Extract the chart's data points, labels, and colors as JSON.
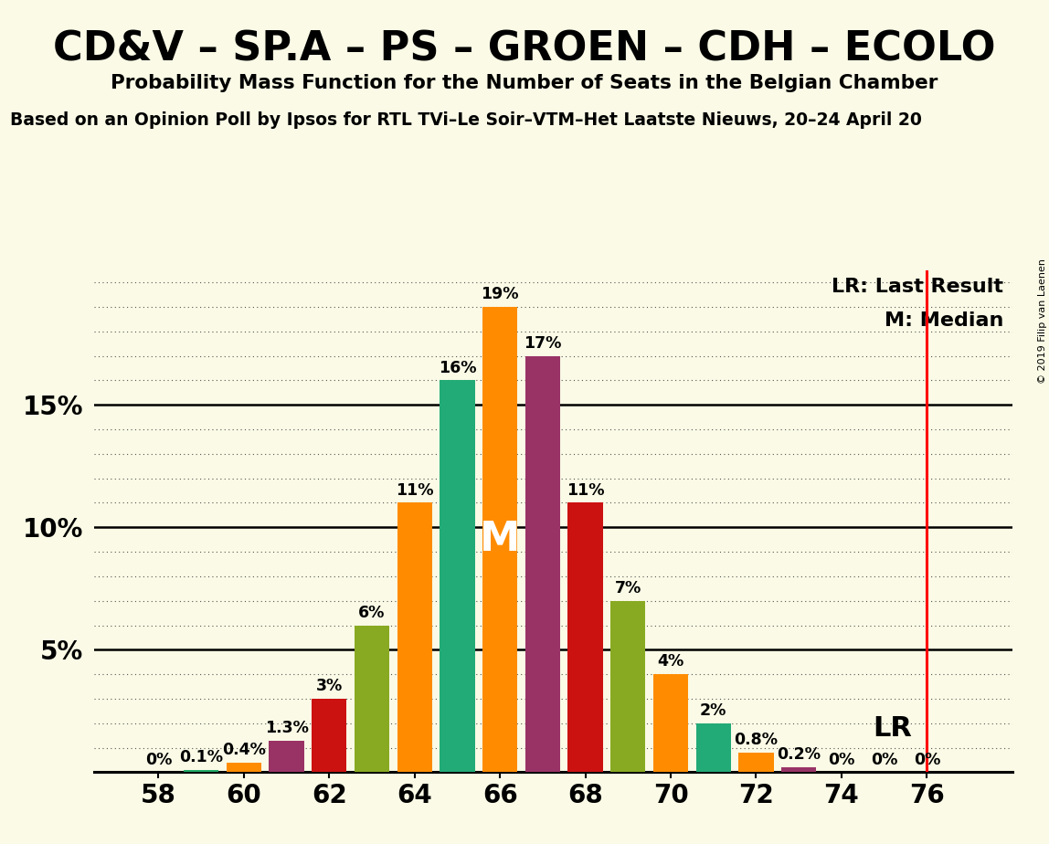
{
  "title": "CD&V – SP.A – PS – GROEN – CDH – ECOLO",
  "subtitle": "Probability Mass Function for the Number of Seats in the Belgian Chamber",
  "source_line": "Based on an Opinion Poll by Ipsos for RTL TVi–Le Soir–VTM–Het Laatste Nieuws, 20–24 April 20",
  "copyright": "© 2019 Filip van Laenen",
  "background_color": "#FAFAE6",
  "seats": [
    58,
    59,
    60,
    61,
    62,
    63,
    64,
    65,
    66,
    67,
    68,
    69,
    70,
    71,
    72,
    73,
    74,
    75,
    76
  ],
  "probabilities": [
    0.0,
    0.1,
    0.4,
    1.3,
    3.0,
    6.0,
    11.0,
    16.0,
    19.0,
    17.0,
    11.0,
    7.0,
    4.0,
    2.0,
    0.8,
    0.2,
    0.0,
    0.0,
    0.0
  ],
  "bar_colors": [
    "#22aa66",
    "#22aa66",
    "#ff8c00",
    "#993366",
    "#cc1111",
    "#88aa22",
    "#ff8c00",
    "#22aa77",
    "#ff8c00",
    "#993366",
    "#cc1111",
    "#88aa22",
    "#ff8c00",
    "#22aa77",
    "#ff8c00",
    "#993366",
    "#88aa22",
    "#88aa22",
    "#88aa22"
  ],
  "label_texts": [
    "0%",
    "0.1%",
    "0.4%",
    "1.3%",
    "3%",
    "6%",
    "11%",
    "16%",
    "19%",
    "17%",
    "11%",
    "7%",
    "4%",
    "2%",
    "0.8%",
    "0.2%",
    "0%",
    "0%",
    "0%"
  ],
  "median_seat": 66,
  "lr_seat": 76,
  "ytick_vals": [
    5,
    10,
    15
  ],
  "ylim": [
    0,
    20.5
  ],
  "xlim": [
    56.5,
    78.0
  ],
  "xticks": [
    58,
    60,
    62,
    64,
    66,
    68,
    70,
    72,
    74,
    76
  ],
  "solid_hlines": [
    5,
    10,
    15
  ],
  "dotted_hlines": [
    1,
    2,
    3,
    4,
    6,
    7,
    8,
    9,
    11,
    12,
    13,
    14,
    16,
    17,
    18,
    19,
    20
  ],
  "bar_width": 0.82
}
